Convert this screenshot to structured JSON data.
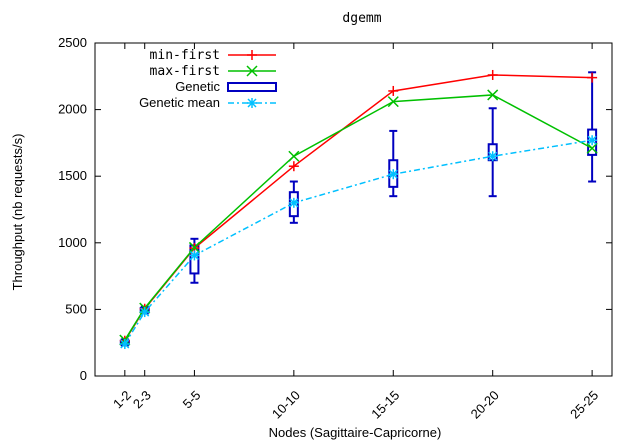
{
  "chart_data": {
    "type": "line",
    "title": "dgemm",
    "xlabel": "Nodes (Sagittaire-Capricorne)",
    "ylabel": "Throughput (nb requests/s)",
    "ylim": [
      0,
      2500
    ],
    "yticks": [
      0,
      500,
      1000,
      1500,
      2000,
      2500
    ],
    "x": [
      3,
      5,
      10,
      20,
      30,
      40,
      50
    ],
    "x_tick_labels": [
      "1-2",
      "2-3",
      "5-5",
      "10-10",
      "15-15",
      "20-20",
      "25-25"
    ],
    "legend_position": "top-left",
    "series": [
      {
        "name": "min-first",
        "color": "#ff0000",
        "marker": "plus",
        "values": [
          265,
          505,
          960,
          1575,
          2140,
          2260,
          2240
        ]
      },
      {
        "name": "max-first",
        "color": "#00c000",
        "marker": "cross",
        "values": [
          270,
          510,
          965,
          1650,
          2060,
          2110,
          1710
        ]
      },
      {
        "name": "Genetic mean",
        "color": "#00c0ff",
        "marker": "star",
        "values": [
          240,
          480,
          905,
          1300,
          1515,
          1650,
          1770
        ]
      }
    ],
    "boxes": {
      "name": "Genetic",
      "color": "#0000c0",
      "items": [
        {
          "x": 3,
          "min": 230,
          "q1": 240,
          "q3": 265,
          "max": 275
        },
        {
          "x": 5,
          "min": 470,
          "q1": 480,
          "q3": 510,
          "max": 520
        },
        {
          "x": 10,
          "min": 700,
          "q1": 770,
          "q3": 980,
          "max": 1030
        },
        {
          "x": 20,
          "min": 1150,
          "q1": 1200,
          "q3": 1380,
          "max": 1460
        },
        {
          "x": 30,
          "min": 1350,
          "q1": 1420,
          "q3": 1620,
          "max": 1840
        },
        {
          "x": 40,
          "min": 1350,
          "q1": 1620,
          "q3": 1740,
          "max": 2010
        },
        {
          "x": 50,
          "min": 1460,
          "q1": 1660,
          "q3": 1850,
          "max": 2280
        }
      ]
    }
  }
}
